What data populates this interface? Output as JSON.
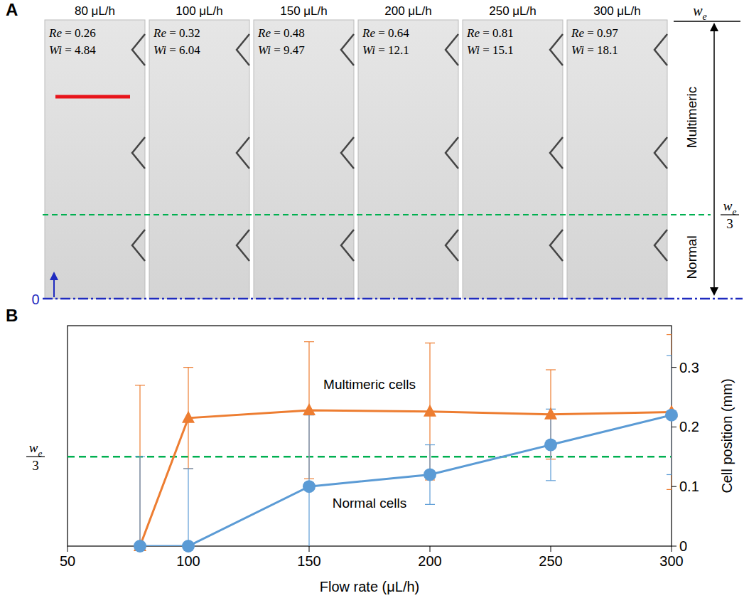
{
  "panel_a": {
    "letter": "A",
    "images": [
      {
        "flow_rate": "80 μL/h",
        "re": "Re = 0.26",
        "wi": "Wi = 4.84"
      },
      {
        "flow_rate": "100 μL/h",
        "re": "Re = 0.32",
        "wi": "Wi = 6.04"
      },
      {
        "flow_rate": "150 μL/h",
        "re": "Re = 0.48",
        "wi": "Wi = 9.47"
      },
      {
        "flow_rate": "200 μL/h",
        "re": "Re = 0.64",
        "wi": "Wi = 12.1"
      },
      {
        "flow_rate": "250 μL/h",
        "re": "Re = 0.81",
        "wi": "Wi = 15.1"
      },
      {
        "flow_rate": "300 μL/h",
        "re": "Re = 0.97",
        "wi": "Wi = 18.1"
      }
    ],
    "width_label": {
      "base": "w",
      "sub": "e"
    },
    "third_label": {
      "base": "w",
      "sub": "e",
      "denominator": "3"
    },
    "zero_label": "0",
    "regions": [
      "Multimeric",
      "Normal"
    ]
  },
  "chart_data": {
    "type": "line",
    "panel_label": "B",
    "x_label": "Flow rate (μL/h)",
    "y_label": "Cell position (mm)",
    "x": [
      80,
      100,
      150,
      200,
      250,
      300
    ],
    "xlim": [
      50,
      300
    ],
    "xticks": [
      50,
      100,
      150,
      200,
      250,
      300
    ],
    "ylim": [
      0,
      0.37
    ],
    "yticks": [
      0,
      0.1,
      0.2,
      0.3
    ],
    "grid": false,
    "series": [
      {
        "name": "Multimeric cells",
        "color": "#ed7d31",
        "marker": "triangle",
        "values": [
          0,
          0.215,
          0.228,
          0.226,
          0.221,
          0.225
        ],
        "errors": [
          0.27,
          0.085,
          0.115,
          0.115,
          0.075,
          0.13
        ]
      },
      {
        "name": "Normal cells",
        "color": "#5b9bd5",
        "marker": "circle",
        "values": [
          0,
          0,
          0.1,
          0.12,
          0.17,
          0.22
        ],
        "errors": [
          0.15,
          0.13,
          0.12,
          0.05,
          0.06,
          0.1
        ]
      }
    ],
    "reference_lines": [
      {
        "value": 0.15,
        "label": {
          "base": "w",
          "sub": "e",
          "denominator": "3"
        },
        "color": "#00b050",
        "line_style": "dashed"
      }
    ]
  }
}
